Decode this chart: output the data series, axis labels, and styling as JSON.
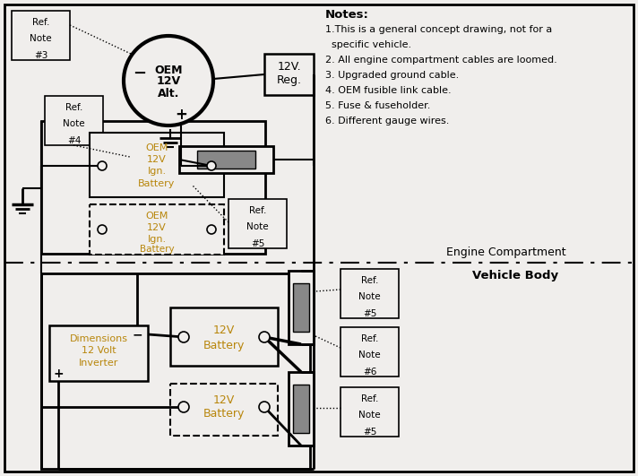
{
  "bg_color": "#f0eeec",
  "line_color": "#000000",
  "text_color": "#000000",
  "yellow_text": "#b8860b",
  "gray_fill": "#888888",
  "notes_title": "Notes:",
  "notes": [
    "1.This is a general concept drawing, not for a",
    "  specific vehicle.",
    "2. All engine compartment cables are loomed.",
    "3. Upgraded ground cable.",
    "4. OEM fusible link cable.",
    "5. Fuse & fuseholder.",
    "6. Different gauge wires."
  ],
  "engine_label": "Engine Compartment",
  "body_label": "Vehicle Body"
}
